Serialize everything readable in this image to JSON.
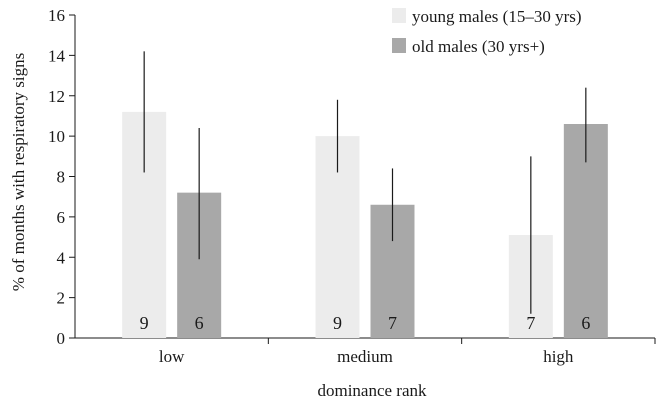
{
  "chart_data": {
    "type": "bar",
    "xlabel": "dominance rank",
    "ylabel": "% of months with respiratory signs",
    "ylim": [
      0,
      16
    ],
    "yticks": [
      0,
      2,
      4,
      6,
      8,
      10,
      12,
      14,
      16
    ],
    "categories": [
      "low",
      "medium",
      "high"
    ],
    "legend_position": "top-right",
    "grid": false,
    "series": [
      {
        "name": "young males (15–30 yrs)",
        "color": "#ececec",
        "values": [
          11.2,
          10.0,
          5.1
        ],
        "error_low": [
          8.2,
          8.2,
          1.2
        ],
        "error_high": [
          14.2,
          11.8,
          9.0
        ],
        "n_labels": [
          "9",
          "9",
          "7"
        ]
      },
      {
        "name": "old males (30 yrs+)",
        "color": "#a8a8a8",
        "values": [
          7.2,
          6.6,
          10.6
        ],
        "error_low": [
          3.9,
          4.8,
          8.7
        ],
        "error_high": [
          10.4,
          8.4,
          12.4
        ],
        "n_labels": [
          "6",
          "7",
          "6"
        ]
      }
    ]
  }
}
